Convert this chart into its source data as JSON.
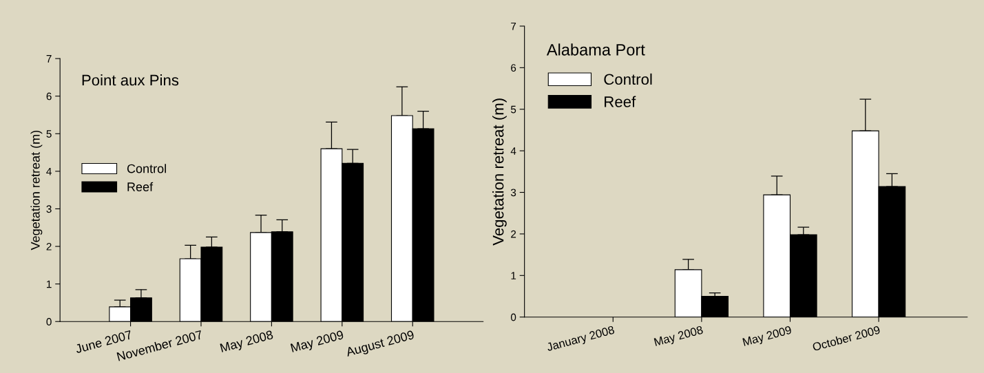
{
  "chart_data": [
    {
      "type": "bar",
      "title": "Point aux Pins",
      "ylabel": "Vegetation retreat (m)",
      "categories": [
        "June 2007",
        "November 2007",
        "May 2008",
        "May 2009",
        "August 2009"
      ],
      "ylim": [
        0,
        7
      ],
      "yticks": [
        0,
        1,
        2,
        3,
        4,
        5,
        6,
        7
      ],
      "legend": "left",
      "grid": false,
      "series": [
        {
          "name": "Control",
          "color": "#ffffff",
          "values": [
            0.39,
            1.67,
            2.37,
            4.6,
            5.48
          ],
          "errors": [
            [
              0.39,
              0.57
            ],
            [
              1.67,
              2.03
            ],
            [
              2.37,
              2.83
            ],
            [
              4.6,
              5.31
            ],
            [
              5.48,
              6.25
            ]
          ]
        },
        {
          "name": "Reef",
          "color": "#000000",
          "values": [
            0.63,
            1.98,
            2.39,
            4.21,
            5.13
          ],
          "errors": [
            [
              0.63,
              0.85
            ],
            [
              1.98,
              2.25
            ],
            [
              2.39,
              2.71
            ],
            [
              4.21,
              4.58
            ],
            [
              5.13,
              5.6
            ]
          ]
        }
      ]
    },
    {
      "type": "bar",
      "title": "Alabama Port",
      "ylabel": "Vegetation retreat (m)",
      "categories": [
        "January 2008",
        "May 2008",
        "May 2009",
        "October 2009"
      ],
      "ylim": [
        0,
        7
      ],
      "yticks": [
        0,
        1,
        2,
        3,
        4,
        5,
        6,
        7
      ],
      "legend": "top left",
      "grid": false,
      "series": [
        {
          "name": "Control",
          "color": "#ffffff",
          "values": [
            null,
            1.14,
            2.94,
            4.48
          ],
          "errors": [
            null,
            [
              1.14,
              1.39
            ],
            [
              2.94,
              3.39
            ],
            [
              4.48,
              5.24
            ]
          ]
        },
        {
          "name": "Reef",
          "color": "#000000",
          "values": [
            null,
            0.5,
            1.98,
            3.14
          ],
          "errors": [
            null,
            [
              0.5,
              0.58
            ],
            [
              1.98,
              2.16
            ],
            [
              3.14,
              3.45
            ]
          ]
        }
      ]
    }
  ]
}
